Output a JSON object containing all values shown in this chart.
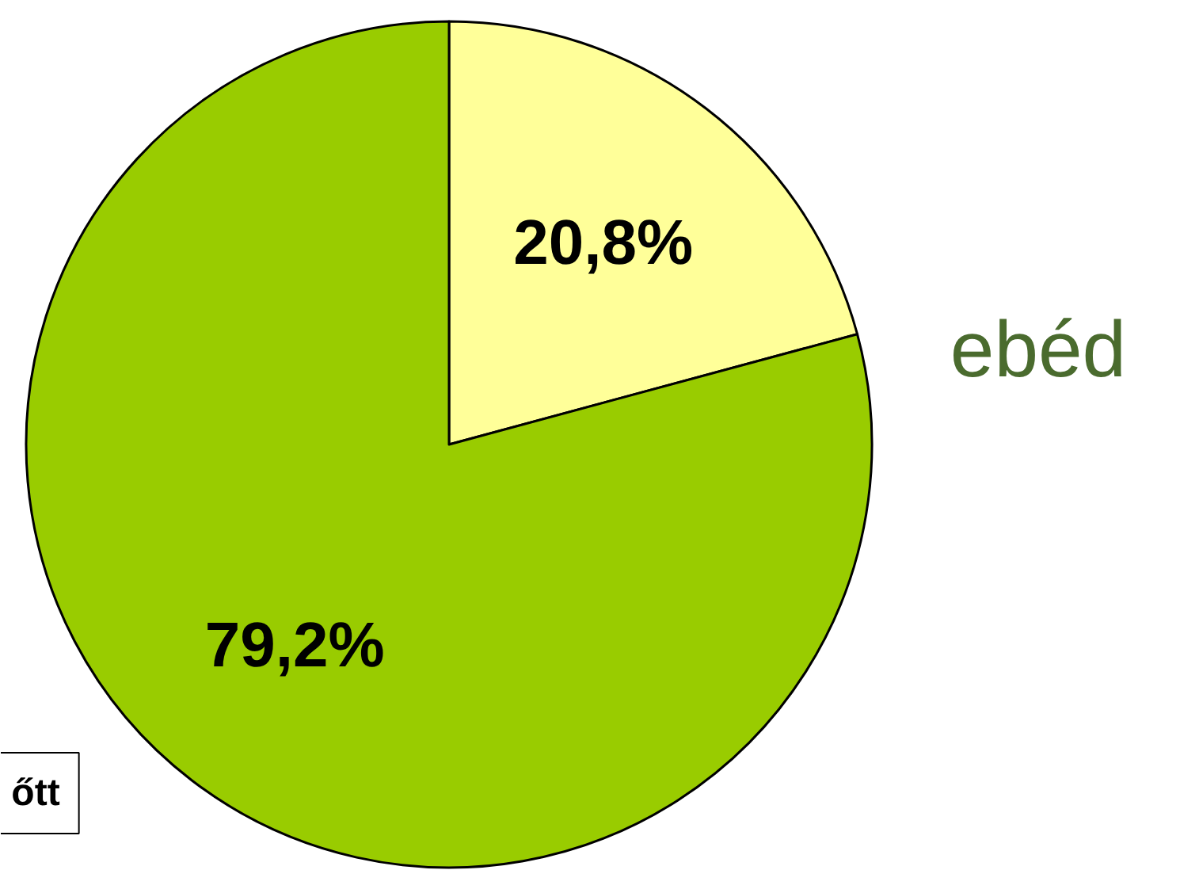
{
  "chart_data": {
    "type": "pie",
    "categories": [
      "ebéd",
      "őtt"
    ],
    "values": [
      20.8,
      79.2
    ],
    "colors": [
      "#ffff99",
      "#99cc00"
    ],
    "value_labels": [
      "20,8%",
      "79,2%"
    ]
  }
}
